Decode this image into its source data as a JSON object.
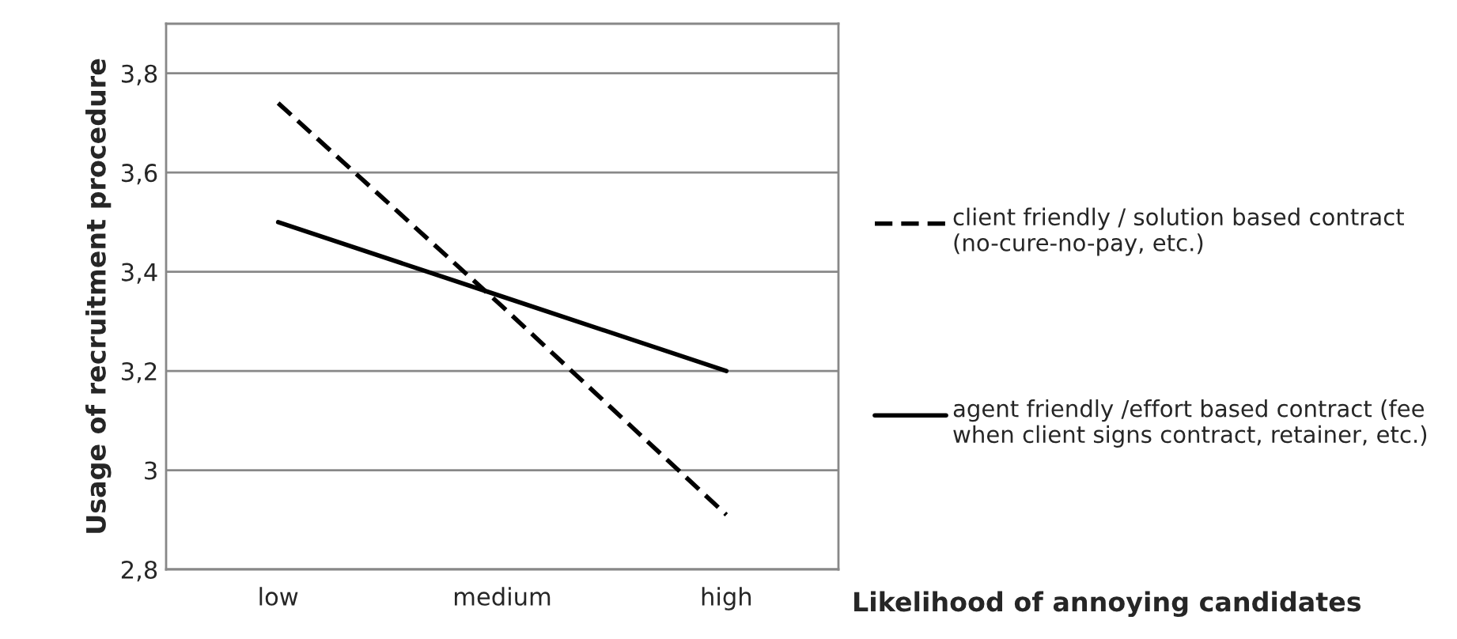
{
  "chart_data": {
    "type": "line",
    "xlabel": "Likelihood of annoying candidates",
    "ylabel": "Usage of recruitment procedure",
    "categories": [
      "low",
      "medium",
      "high"
    ],
    "series": [
      {
        "name": "client friendly / solution based contract (no-cure-no-pay, etc.)",
        "color": "#000000",
        "line_style": "dashed",
        "values": [
          3.74,
          3.33,
          2.91
        ]
      },
      {
        "name": "agent friendly /effort based contract (fee when client signs contract, retainer, etc.)",
        "color": "#000000",
        "line_style": "solid",
        "values": [
          3.5,
          3.35,
          3.2
        ]
      }
    ],
    "ylim": [
      2.8,
      3.9
    ],
    "yticks": [
      {
        "value": 2.8,
        "label": "2,8"
      },
      {
        "value": 3.0,
        "label": "3"
      },
      {
        "value": 3.2,
        "label": "3,2"
      },
      {
        "value": 3.4,
        "label": "3,4"
      },
      {
        "value": 3.6,
        "label": "3,6"
      },
      {
        "value": 3.8,
        "label": "3,8"
      }
    ],
    "grid": "y",
    "legend": "right",
    "marker": "none"
  }
}
